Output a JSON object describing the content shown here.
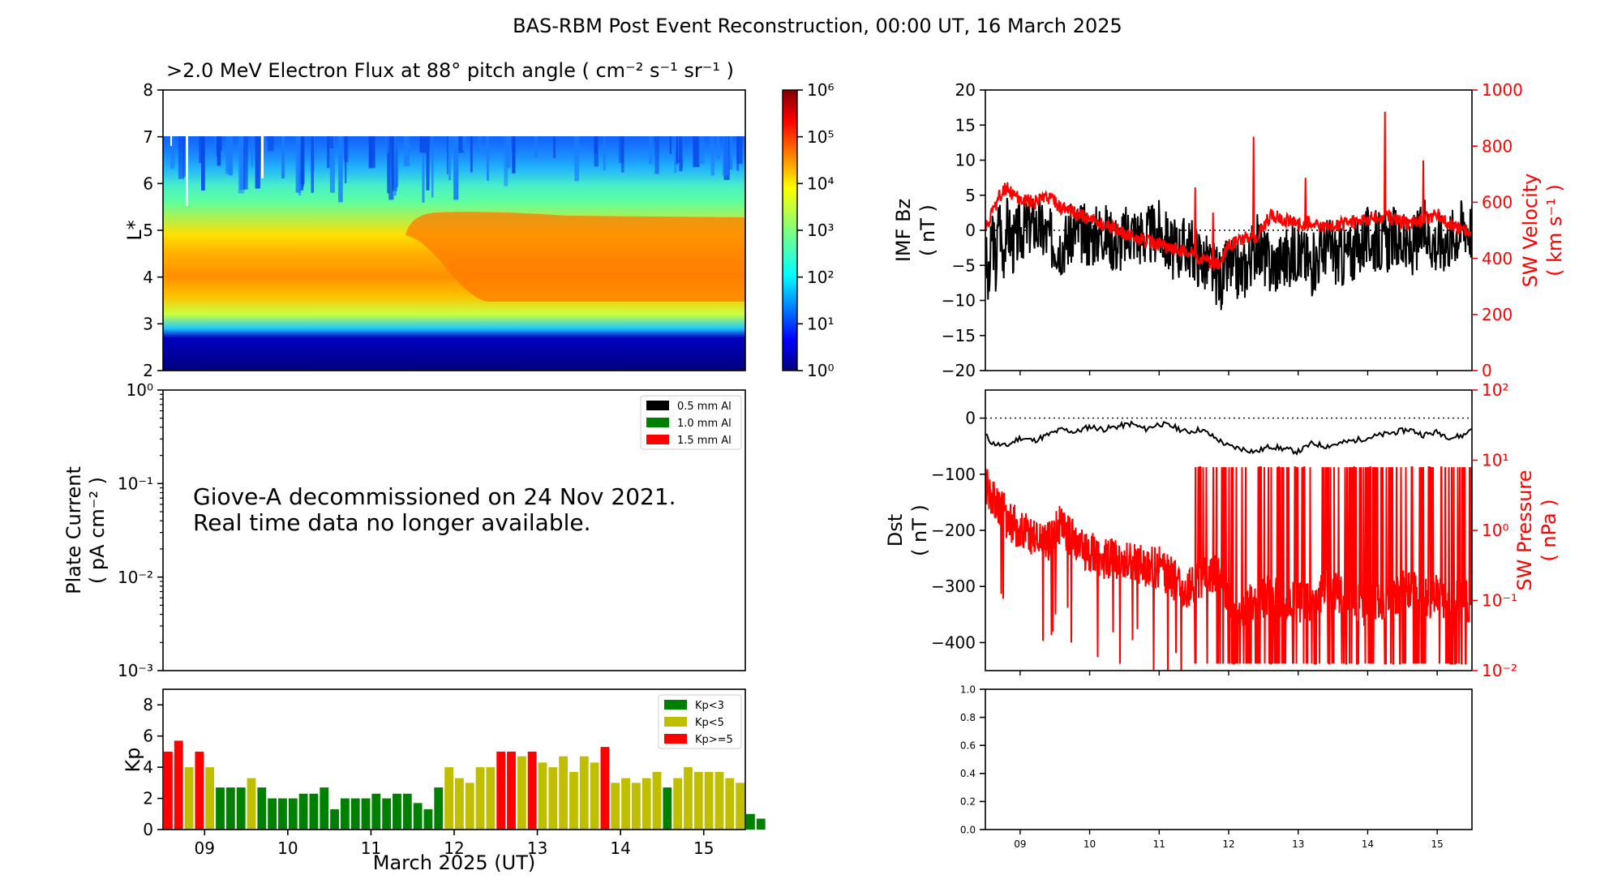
{
  "figure_title": "BAS-RBM Post Event Reconstruction, 00:00 UT, 16 March 2025",
  "colors": {
    "kp_low": "#008000",
    "kp_mid": "#bfbf00",
    "kp_high": "#ff0000",
    "bz_line": "#000000",
    "sw_red": "#ff0000"
  },
  "chart_data": [
    {
      "id": "flux",
      "type": "heatmap",
      "title": ">2.0 MeV Electron Flux at 88° pitch angle ( cm⁻² s⁻¹ sr⁻¹ )",
      "ylabel": "L*",
      "ylim": [
        2,
        8
      ],
      "yticks": [
        "2",
        "3",
        "4",
        "5",
        "6",
        "7",
        "8"
      ],
      "xlim_days": [
        8.5,
        15.5
      ],
      "data_L_range": [
        2,
        7
      ],
      "colorbar_ticks": [
        "10⁰",
        "10¹",
        "10²",
        "10³",
        "10⁴",
        "10⁵",
        "10⁶"
      ],
      "colorbar_range_log10": [
        0,
        6
      ]
    },
    {
      "id": "plate_current",
      "type": "line",
      "ylabel": "Plate Current",
      "ylabel_units": "( pA cm⁻² )",
      "yscale": "log",
      "ylim": [
        0.001,
        1
      ],
      "yticks": [
        "10⁻³",
        "10⁻²",
        "10⁻¹",
        "10⁰"
      ],
      "legend": [
        "0.5 mm Al",
        "1.0 mm Al",
        "1.5 mm Al"
      ],
      "legend_colors": [
        "#000000",
        "#008000",
        "#ff0000"
      ],
      "legend_position": "top-right",
      "annotation_line1": "Giove-A decommissioned on 24 Nov 2021.",
      "annotation_line2": "Real time data no longer available."
    },
    {
      "id": "kp",
      "type": "bar",
      "ylabel": "Kp",
      "ylim": [
        0,
        9
      ],
      "yticks": [
        "0",
        "2",
        "4",
        "6",
        "8"
      ],
      "xlabel": "March 2025 (UT)",
      "xtick_labels": [
        "09",
        "10",
        "11",
        "12",
        "13",
        "14",
        "15"
      ],
      "legend": [
        "Kp<3",
        "Kp<5",
        "Kp>=5"
      ],
      "legend_position": "top-right",
      "start_day": 8.5,
      "bin_days": 0.125,
      "values": [
        5.0,
        5.7,
        4.0,
        5.0,
        4.0,
        2.7,
        2.7,
        2.7,
        3.3,
        2.7,
        2.0,
        2.0,
        2.0,
        2.3,
        2.3,
        2.7,
        1.3,
        2.0,
        2.0,
        2.0,
        2.3,
        2.0,
        2.3,
        2.3,
        1.7,
        1.3,
        2.7,
        4.0,
        3.3,
        3.0,
        4.0,
        4.0,
        5.0,
        5.0,
        4.7,
        5.0,
        4.3,
        4.0,
        4.7,
        3.7,
        4.7,
        4.3,
        5.3,
        3.0,
        3.3,
        3.0,
        3.3,
        3.7,
        2.7,
        3.3,
        4.0,
        3.7,
        3.7,
        3.7,
        3.3,
        3.0,
        1.0,
        0.7
      ]
    },
    {
      "id": "imf_sw_velocity",
      "type": "line",
      "ylabel": "IMF Bz",
      "ylabel_units": "( nT )",
      "ylim": [
        -20,
        20
      ],
      "yticks": [
        "−20",
        "−15",
        "−10",
        "−5",
        "0",
        "5",
        "10",
        "15",
        "20"
      ],
      "y2label": "SW Velocity",
      "y2label_units": "( km s⁻¹ )",
      "y2lim": [
        0,
        1000
      ],
      "y2ticks": [
        "0",
        "200",
        "400",
        "600",
        "800",
        "1000"
      ],
      "xlim_days": [
        8.5,
        15.5
      ],
      "series": [
        {
          "name": "IMF Bz",
          "x": [
            8.5,
            8.55,
            8.6,
            8.65,
            8.7,
            8.75,
            8.8,
            8.9,
            9.0,
            9.2,
            9.4,
            9.6,
            9.8,
            10.0,
            10.2,
            10.4,
            10.6,
            10.8,
            11.0,
            11.2,
            11.4,
            11.6,
            11.8,
            11.9,
            12.0,
            12.2,
            12.4,
            12.6,
            12.8,
            13.0,
            13.2,
            13.4,
            13.6,
            13.8,
            14.0,
            14.2,
            14.4,
            14.6,
            14.8,
            15.0,
            15.2,
            15.4,
            15.5
          ],
          "y": [
            -3,
            -9,
            1,
            -6,
            3,
            -4,
            1,
            -2,
            0,
            1,
            -1,
            -2,
            0,
            -1,
            0,
            -2,
            0,
            -1,
            0,
            -3,
            -2,
            -4,
            -6,
            -7,
            -5,
            -6,
            -2,
            -5,
            -4,
            -3,
            -5,
            -2,
            -4,
            -3,
            -1,
            -2,
            -1,
            -3,
            0,
            -2,
            -1,
            1,
            0
          ]
        },
        {
          "name": "SW Velocity",
          "x": [
            8.5,
            8.6,
            8.7,
            8.8,
            8.9,
            9.0,
            9.2,
            9.4,
            9.6,
            9.8,
            10.0,
            10.2,
            10.4,
            10.6,
            10.8,
            11.0,
            11.2,
            11.4,
            11.6,
            11.8,
            11.9,
            12.0,
            12.2,
            12.4,
            12.6,
            12.8,
            13.0,
            13.2,
            13.4,
            13.6,
            13.8,
            14.0,
            14.2,
            14.4,
            14.6,
            14.8,
            15.0,
            15.2,
            15.4,
            15.5
          ],
          "y": [
            520,
            560,
            620,
            650,
            630,
            610,
            600,
            620,
            580,
            560,
            540,
            520,
            500,
            480,
            460,
            450,
            430,
            420,
            400,
            380,
            390,
            450,
            470,
            480,
            550,
            540,
            520,
            530,
            510,
            520,
            530,
            540,
            550,
            540,
            520,
            540,
            560,
            520,
            500,
            480
          ]
        }
      ]
    },
    {
      "id": "dst_sw_pressure",
      "type": "line",
      "ylabel": "Dst",
      "ylabel_units": "( nT )",
      "ylim": [
        -450,
        50
      ],
      "yticks": [
        "−400",
        "−300",
        "−200",
        "−100",
        "0"
      ],
      "y2label": "SW Pressure",
      "y2label_units": "( nPa )",
      "y2scale": "log",
      "y2lim": [
        0.01,
        100
      ],
      "y2ticks": [
        "10⁻²",
        "10⁻¹",
        "10⁰",
        "10¹",
        "10²"
      ],
      "xlim_days": [
        8.5,
        15.5
      ],
      "series": [
        {
          "name": "Dst",
          "x": [
            8.5,
            8.6,
            8.8,
            9.0,
            9.2,
            9.4,
            9.6,
            9.8,
            10.0,
            10.2,
            10.4,
            10.6,
            10.8,
            11.0,
            11.2,
            11.4,
            11.6,
            11.8,
            12.0,
            12.2,
            12.4,
            12.6,
            12.8,
            13.0,
            13.2,
            13.4,
            13.6,
            13.8,
            14.0,
            14.2,
            14.4,
            14.6,
            14.8,
            15.0,
            15.2,
            15.4,
            15.5
          ],
          "y": [
            -30,
            -45,
            -50,
            -35,
            -40,
            -30,
            -20,
            -25,
            -15,
            -20,
            -15,
            -10,
            -20,
            -10,
            -15,
            -25,
            -20,
            -35,
            -50,
            -55,
            -60,
            -50,
            -55,
            -60,
            -45,
            -50,
            -45,
            -40,
            -35,
            -30,
            -25,
            -20,
            -30,
            -25,
            -35,
            -30,
            -15
          ]
        },
        {
          "name": "SW Pressure",
          "x": [
            8.5,
            8.6,
            8.8,
            9.0,
            9.2,
            9.4,
            9.6,
            9.8,
            10.0,
            10.2,
            10.4,
            10.6,
            10.8,
            11.0,
            11.2,
            11.4,
            11.6,
            11.8,
            12.0,
            12.2,
            12.4,
            12.6,
            12.8,
            13.0,
            13.2,
            13.4,
            13.6,
            13.8,
            14.0,
            14.2,
            14.4,
            14.6,
            14.8,
            15.0,
            15.2,
            15.4,
            15.5
          ],
          "y": [
            5,
            3,
            1.5,
            1,
            0.8,
            0.7,
            1.2,
            0.6,
            0.5,
            0.4,
            0.4,
            0.35,
            0.3,
            0.3,
            0.2,
            0.15,
            0.2,
            0.25,
            0.1,
            0.08,
            0.1,
            0.12,
            0.1,
            0.09,
            0.1,
            0.15,
            0.12,
            0.1,
            0.08,
            0.1,
            0.12,
            0.15,
            0.1,
            0.12,
            0.1,
            0.1,
            0.1
          ]
        }
      ]
    },
    {
      "id": "empty_panel",
      "type": "line",
      "ylim": [
        0,
        1
      ],
      "yticks": [
        "0.0",
        "0.2",
        "0.4",
        "0.6",
        "0.8",
        "1.0"
      ],
      "xtick_labels": [
        "09",
        "10",
        "11",
        "12",
        "13",
        "14",
        "15"
      ]
    }
  ]
}
